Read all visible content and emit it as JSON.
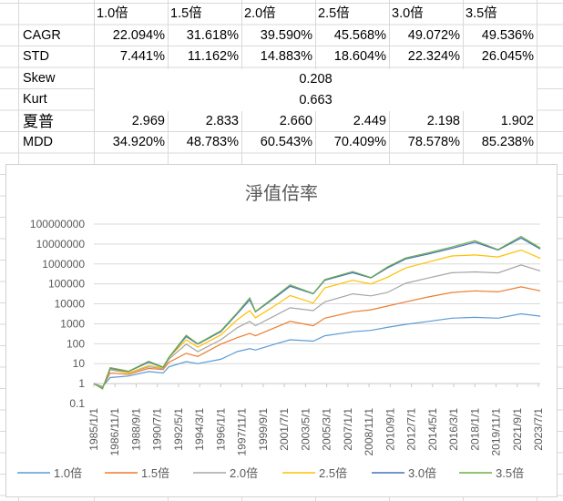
{
  "table": {
    "headers": [
      "1.0倍",
      "1.5倍",
      "2.0倍",
      "2.5倍",
      "3.0倍",
      "3.5倍"
    ],
    "rows": [
      {
        "label": "CAGR",
        "values": [
          "22.094%",
          "31.618%",
          "39.590%",
          "45.568%",
          "49.072%",
          "49.536%"
        ]
      },
      {
        "label": "STD",
        "values": [
          "7.441%",
          "11.162%",
          "14.883%",
          "18.604%",
          "22.324%",
          "26.045%"
        ]
      },
      {
        "label": "Skew",
        "merged": "0.208"
      },
      {
        "label": "Kurt",
        "merged": "0.663"
      },
      {
        "label": "夏普",
        "values": [
          "2.969",
          "2.833",
          "2.660",
          "2.449",
          "2.198",
          "1.902"
        ]
      },
      {
        "label": "MDD",
        "values": [
          "34.920%",
          "48.783%",
          "60.543%",
          "70.409%",
          "78.578%",
          "85.238%"
        ]
      }
    ]
  },
  "chart_data": {
    "type": "line",
    "title": "淨值倍率",
    "y_scale": "log",
    "ylim": [
      0.1,
      100000000
    ],
    "y_ticks": [
      "100000000",
      "10000000",
      "1000000",
      "100000",
      "10000",
      "1000",
      "100",
      "10",
      "1",
      "0.1"
    ],
    "x_ticks": [
      "1985/1/1",
      "1986/11/1",
      "1988/9/1",
      "1990/7/1",
      "1992/5/1",
      "1994/3/1",
      "1996/1/1",
      "1997/11/1",
      "1999/9/1",
      "2001/7/1",
      "2003/5/1",
      "2005/3/1",
      "2007/1/1",
      "2008/11/1",
      "2010/9/1",
      "2012/7/1",
      "2014/5/1",
      "2016/3/1",
      "2018/1/1",
      "2019/11/1",
      "2021/9/1",
      "2023/7/1"
    ],
    "grid": true,
    "legend_position": "bottom",
    "x": [
      "1985/1",
      "1985/10",
      "1986/6",
      "1988/1",
      "1989/10",
      "1991/1",
      "1991/7",
      "1993/1",
      "1994/1",
      "1996/1",
      "1997/6",
      "1998/7",
      "1999/1",
      "2000/9",
      "2002/1",
      "2004/1",
      "2005/1",
      "2007/6",
      "2009/1",
      "2010/6",
      "2012/1",
      "2014/1",
      "2016/1",
      "2018/1",
      "2020/1",
      "2022/1",
      "2023/9"
    ],
    "series": [
      {
        "name": "1.0倍",
        "color": "#5B9BD5",
        "values": [
          1,
          0.7,
          2,
          2.4,
          4,
          3.4,
          6.9,
          12.6,
          10,
          16.6,
          40,
          56,
          48,
          95,
          158,
          135,
          251,
          398,
          468,
          661,
          933,
          1318,
          1905,
          2089,
          1905,
          3162,
          2399
        ]
      },
      {
        "name": "1.5倍",
        "color": "#ED7D31",
        "values": [
          1,
          0.63,
          3.4,
          2.9,
          5.8,
          5,
          11.7,
          33,
          23,
          95,
          200,
          331,
          251,
          631,
          1318,
          794,
          1905,
          3981,
          5012,
          7762,
          12589,
          22387,
          37154,
          44668,
          39811,
          70795,
          44668
        ]
      },
      {
        "name": "2.0倍",
        "color": "#A5A5A5",
        "values": [
          1,
          0.63,
          4.9,
          3.4,
          6.9,
          5.6,
          16.6,
          95,
          40,
          158,
          631,
          1318,
          794,
          2512,
          6310,
          4571,
          12589,
          31623,
          25119,
          37154,
          107152,
          199526,
          363078,
          398107,
          354813,
          891251,
          446684
        ]
      },
      {
        "name": "2.5倍",
        "color": "#FFC000",
        "values": [
          1,
          0.6,
          5.8,
          3.4,
          8.1,
          6.3,
          20,
          158,
          68,
          275,
          1585,
          4571,
          1995,
          7943,
          26303,
          10965,
          63096,
          151356,
          100000,
          213796,
          630957,
          1258925,
          2511886,
          2818383,
          2238721,
          5011872,
          1905461
        ]
      },
      {
        "name": "3.0倍",
        "color": "#4472C4",
        "values": [
          1,
          0.56,
          5.8,
          4,
          11.7,
          6.6,
          20,
          229,
          95,
          398,
          3162,
          15849,
          3981,
          19953,
          75858,
          31623,
          151356,
          363078,
          199526,
          630957,
          1778279,
          3162278,
          6025596,
          12302688,
          5011872,
          19952623,
          5623413
        ]
      },
      {
        "name": "3.5倍",
        "color": "#70AD47",
        "values": [
          1,
          0.54,
          6.3,
          4.2,
          13.2,
          6.8,
          21,
          263,
          100,
          447,
          3548,
          19953,
          4169,
          22387,
          89125,
          33113,
          165959,
          416869,
          208930,
          707946,
          1995262,
          3630781,
          7079458,
          14791084,
          5248075,
          23988329,
          6309573
        ]
      }
    ]
  }
}
